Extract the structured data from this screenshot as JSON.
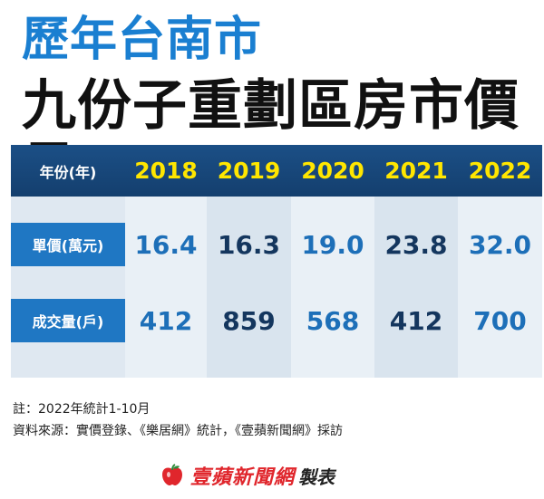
{
  "title": {
    "line1": "歷年台南市",
    "line2": "九份子重劃區房市價量"
  },
  "table": {
    "header_label": "年份(年)",
    "years": [
      "2018",
      "2019",
      "2020",
      "2021",
      "2022"
    ],
    "rows": [
      {
        "label": "單價(萬元)",
        "values": [
          "16.4",
          "16.3",
          "19.0",
          "23.8",
          "32.0"
        ]
      },
      {
        "label": "成交量(戶)",
        "values": [
          "412",
          "859",
          "568",
          "412",
          "700"
        ]
      }
    ]
  },
  "notes": {
    "note": "註：2022年統計1-10月",
    "source": "資料來源：實價登錄、《樂居網》統計，《壹蘋新聞網》採訪"
  },
  "logo": {
    "name": "壹蘋新聞網",
    "suffix": "製表",
    "icon": "apple-icon",
    "color": "#e0262c"
  },
  "colors": {
    "title_blue": "#1a7fd1",
    "header_navy": "#1b4f86",
    "year_yellow": "#ffe600",
    "label_blue": "#1f77c3"
  }
}
